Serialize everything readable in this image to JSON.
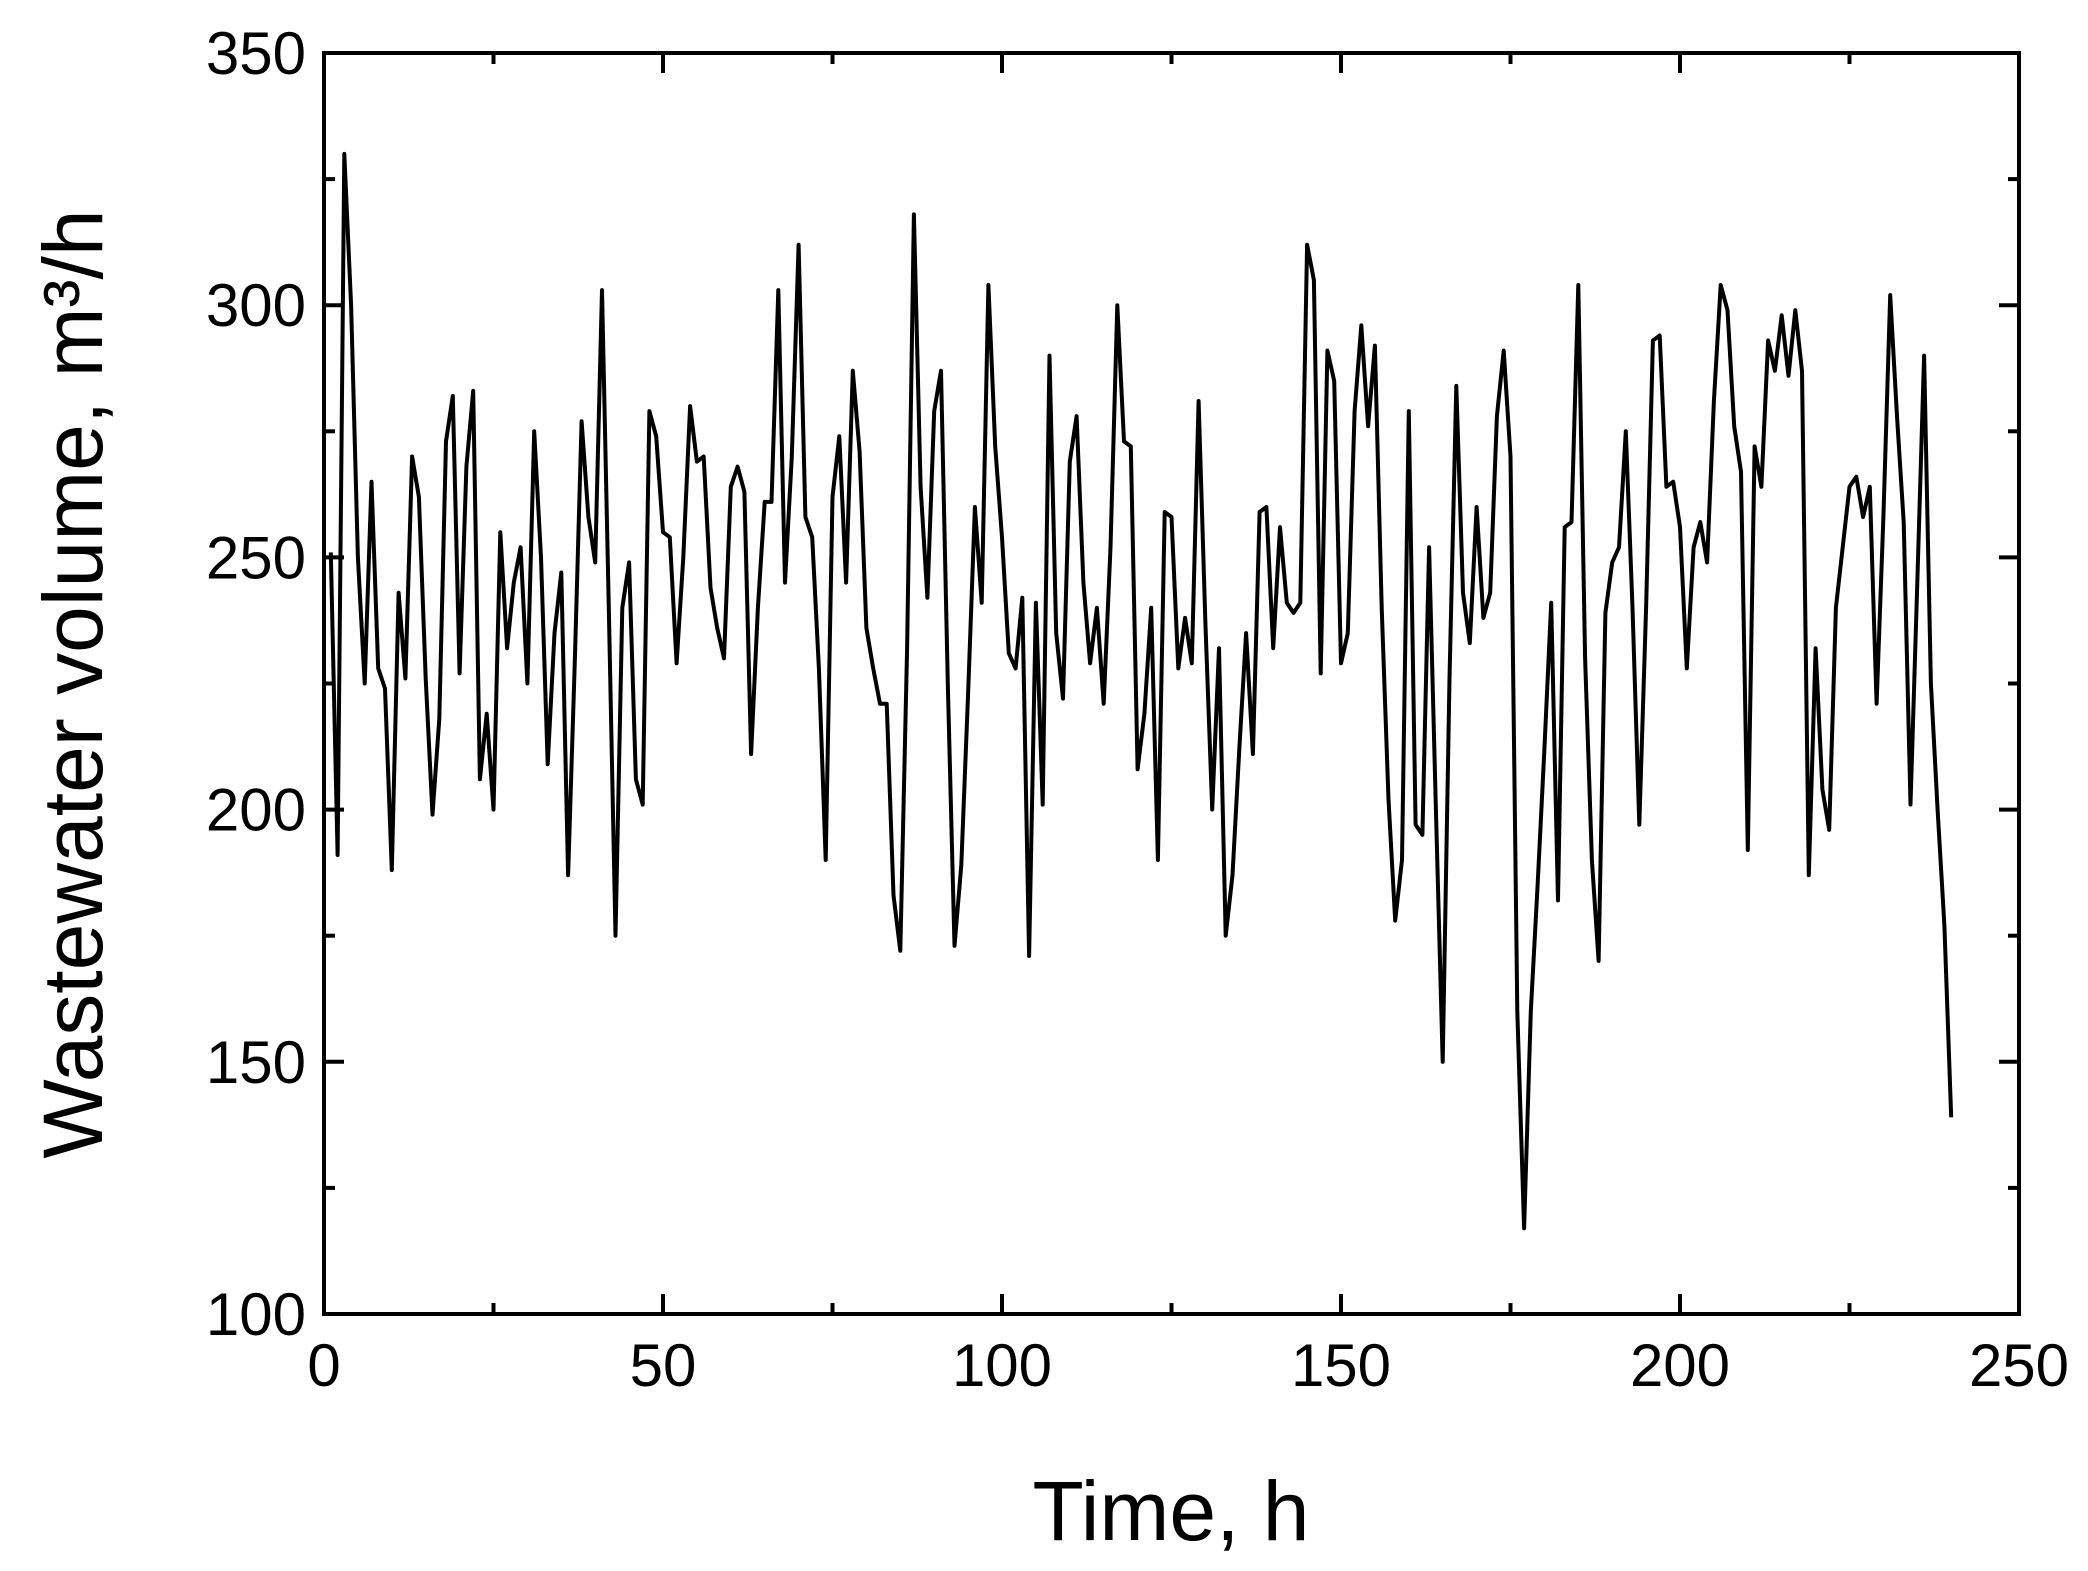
{
  "chart_data": {
    "type": "line",
    "xlabel": "Time, h",
    "ylabel": "Wastewater volume, m³/h",
    "color": "#000000",
    "xlim": [
      0,
      250
    ],
    "xticks": [
      0,
      50,
      100,
      150,
      200,
      250
    ],
    "xminorticks": [
      25,
      75,
      125,
      175,
      225
    ],
    "ylim": [
      100,
      350
    ],
    "yticks": [
      100,
      150,
      200,
      250,
      300,
      350
    ],
    "yminorticks": [
      125,
      175,
      225,
      275,
      325
    ],
    "x": [
      1,
      2,
      3,
      4,
      5,
      6,
      7,
      8,
      9,
      10,
      11,
      12,
      13,
      14,
      15,
      16,
      17,
      18,
      19,
      20,
      21,
      22,
      23,
      24,
      25,
      26,
      27,
      28,
      29,
      30,
      31,
      32,
      33,
      34,
      35,
      36,
      37,
      38,
      39,
      40,
      41,
      42,
      43,
      44,
      45,
      46,
      47,
      48,
      49,
      50,
      51,
      52,
      53,
      54,
      55,
      56,
      57,
      58,
      59,
      60,
      61,
      62,
      63,
      64,
      65,
      66,
      67,
      68,
      69,
      70,
      71,
      72,
      73,
      74,
      75,
      76,
      77,
      78,
      79,
      80,
      81,
      82,
      83,
      84,
      85,
      86,
      87,
      88,
      89,
      90,
      91,
      92,
      93,
      94,
      95,
      96,
      97,
      98,
      99,
      100,
      101,
      102,
      103,
      104,
      105,
      106,
      107,
      108,
      109,
      110,
      111,
      112,
      113,
      114,
      115,
      116,
      117,
      118,
      119,
      120,
      121,
      122,
      123,
      124,
      125,
      126,
      127,
      128,
      129,
      130,
      131,
      132,
      133,
      134,
      135,
      136,
      137,
      138,
      139,
      140,
      141,
      142,
      143,
      144,
      145,
      146,
      147,
      148,
      149,
      150,
      151,
      152,
      153,
      154,
      155,
      156,
      157,
      158,
      159,
      160,
      161,
      162,
      163,
      164,
      165,
      166,
      167,
      168,
      169,
      170,
      171,
      172,
      173,
      174,
      175,
      176,
      177,
      178,
      179,
      180,
      181,
      182,
      183,
      184,
      185,
      186,
      187,
      188,
      189,
      190,
      191,
      192,
      193,
      194,
      195,
      196,
      197,
      198,
      199,
      200,
      201,
      202,
      203,
      204,
      205,
      206,
      207,
      208,
      209,
      210,
      211,
      212,
      213,
      214,
      215,
      216,
      217,
      218,
      219,
      220,
      221,
      222,
      223,
      224,
      225,
      226,
      227,
      228,
      229,
      230,
      231,
      232,
      233,
      234,
      235,
      236,
      237,
      238,
      239,
      240
    ],
    "values": [
      251,
      191,
      330,
      300,
      250,
      225,
      265,
      228,
      224,
      188,
      243,
      226,
      270,
      262,
      226,
      199,
      218,
      273,
      282,
      227,
      268,
      283,
      206,
      219,
      200,
      255,
      232,
      245,
      252,
      225,
      275,
      250,
      209,
      235,
      247,
      187,
      230,
      277,
      258,
      249,
      303,
      240,
      175,
      240,
      249,
      206,
      201,
      279,
      274,
      255,
      254,
      229,
      250,
      280,
      269,
      270,
      244,
      236,
      230,
      264,
      268,
      263,
      211,
      240,
      261,
      261,
      303,
      245,
      270,
      312,
      258,
      254,
      228,
      190,
      262,
      274,
      245,
      287,
      271,
      236,
      228,
      221,
      221,
      183,
      172,
      232,
      318,
      264,
      242,
      279,
      287,
      225,
      173,
      189,
      223,
      260,
      241,
      304,
      272,
      254,
      231,
      228,
      242,
      171,
      241,
      201,
      290,
      235,
      222,
      269,
      278,
      245,
      229,
      240,
      221,
      252,
      300,
      273,
      272,
      208,
      219,
      240,
      190,
      259,
      258,
      228,
      238,
      229,
      281,
      237,
      200,
      232,
      175,
      187,
      212,
      235,
      211,
      259,
      260,
      232,
      256,
      241,
      239,
      241,
      312,
      305,
      227,
      291,
      285,
      229,
      235,
      279,
      296,
      276,
      292,
      240,
      202,
      178,
      190,
      279,
      197,
      195,
      252,
      200,
      150,
      226,
      284,
      243,
      233,
      260,
      238,
      243,
      278,
      291,
      270,
      160,
      117,
      160,
      185,
      212,
      241,
      182,
      256,
      257,
      304,
      230,
      190,
      170,
      239,
      249,
      252,
      275,
      240,
      197,
      240,
      293,
      294,
      264,
      265,
      256,
      228,
      252,
      257,
      249,
      281,
      304,
      299,
      276,
      267,
      192,
      272,
      264,
      293,
      287,
      298,
      286,
      299,
      287,
      187,
      232,
      204,
      196,
      240,
      252,
      264,
      266,
      258,
      264,
      221,
      258,
      302,
      278,
      257,
      201,
      245,
      290,
      225,
      200,
      177,
      139
    ]
  }
}
